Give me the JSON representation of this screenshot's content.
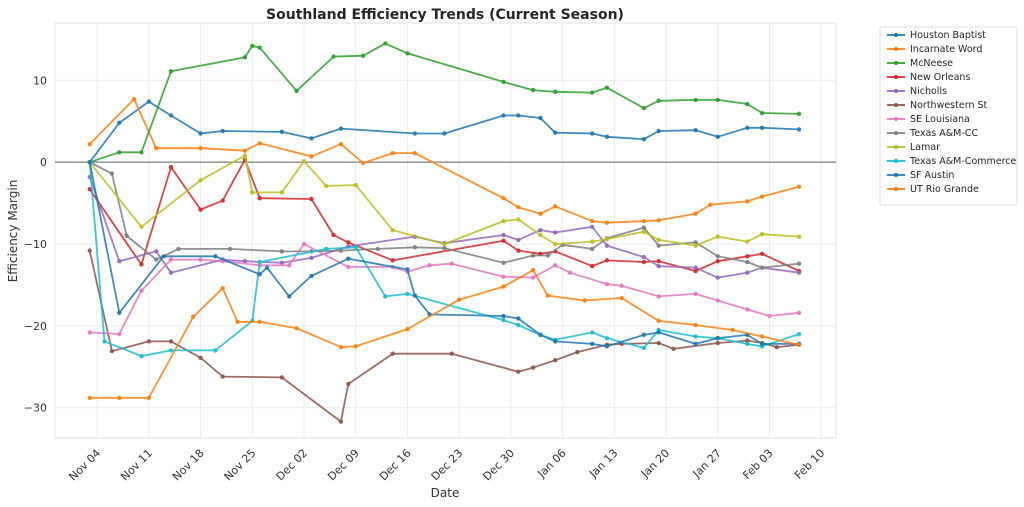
{
  "chart_data": {
    "type": "line",
    "title": "Southland Efficiency Trends (Current Season)",
    "xlabel": "Date",
    "ylabel": "Efficiency Margin",
    "ylim": [
      -33.7,
      17.0
    ],
    "xlim_days_from_nov04": [
      -5.7,
      100.0
    ],
    "yticks": [
      -30,
      -20,
      -10,
      0,
      10
    ],
    "ytick_labels": [
      "−30",
      "−20",
      "−10",
      "0",
      "10"
    ],
    "xticks": [
      0,
      7,
      14,
      21,
      28,
      35,
      42,
      49,
      56,
      63,
      70,
      77,
      84,
      91,
      98
    ],
    "xtick_labels": [
      "Nov 04",
      "Nov 11",
      "Nov 18",
      "Nov 25",
      "Dec 02",
      "Dec 09",
      "Dec 16",
      "Dec 23",
      "Dec 30",
      "Jan 06",
      "Jan 13",
      "Jan 20",
      "Jan 27",
      "Feb 03",
      "Feb 10"
    ],
    "reference_line": 0,
    "grid": true,
    "legend_position": "outside-top-right",
    "series": [
      {
        "name": "Houston Baptist",
        "color": "#1f77b4",
        "x": [
          -1,
          3,
          7,
          10,
          14,
          17,
          25,
          29,
          33,
          43,
          47,
          55,
          57,
          60,
          62,
          67,
          69,
          74,
          76,
          81,
          84,
          88,
          90,
          95
        ],
        "y": [
          0,
          4.8,
          7.4,
          5.7,
          3.5,
          3.8,
          3.7,
          2.9,
          4.1,
          3.5,
          3.5,
          5.7,
          5.7,
          5.4,
          3.6,
          3.5,
          3.1,
          2.8,
          3.8,
          3.9,
          3.1,
          4.2,
          4.2,
          4.0
        ]
      },
      {
        "name": "Incarnate Word",
        "color": "#ff7f0e",
        "x": [
          -1,
          5,
          8,
          14,
          20,
          22,
          29,
          33,
          36,
          40,
          43,
          55,
          57,
          60,
          62,
          67,
          69,
          74,
          76,
          81,
          83,
          88,
          90,
          95
        ],
        "y": [
          2.2,
          7.7,
          1.7,
          1.7,
          1.4,
          2.3,
          0.7,
          2.2,
          -0.1,
          1.1,
          1.1,
          -4.4,
          -5.5,
          -6.3,
          -5.4,
          -7.2,
          -7.4,
          -7.2,
          -7.1,
          -6.3,
          -5.2,
          -4.8,
          -4.2,
          -3.0
        ]
      },
      {
        "name": "McNeese",
        "color": "#2ca02c",
        "x": [
          -1,
          3,
          6,
          10,
          20,
          21,
          22,
          27,
          32,
          36,
          39,
          42,
          55,
          59,
          62,
          67,
          69,
          74,
          76,
          81,
          84,
          88,
          90,
          95
        ],
        "y": [
          0,
          1.2,
          1.2,
          11.1,
          12.8,
          14.2,
          14.0,
          8.7,
          12.9,
          13.0,
          14.5,
          13.3,
          9.8,
          8.8,
          8.6,
          8.5,
          9.1,
          6.6,
          7.5,
          7.6,
          7.6,
          7.1,
          6.0,
          5.9
        ]
      },
      {
        "name": "New Orleans",
        "color": "#d62728",
        "x": [
          -1,
          6,
          10,
          14,
          17,
          20,
          22,
          29,
          32,
          34,
          40,
          55,
          57,
          60,
          62,
          67,
          69,
          74,
          76,
          81,
          84,
          88,
          90,
          95
        ],
        "y": [
          -3.3,
          -12.5,
          -0.6,
          -5.8,
          -4.7,
          0.3,
          -4.4,
          -4.5,
          -8.9,
          -9.8,
          -12.0,
          -9.6,
          -10.8,
          -11.2,
          -10.9,
          -12.7,
          -12.0,
          -12.2,
          -12.1,
          -13.3,
          -12.1,
          -11.5,
          -11.2,
          -13.3
        ]
      },
      {
        "name": "Nicholls",
        "color": "#9467bd",
        "x": [
          -1,
          3,
          8,
          10,
          17,
          20,
          25,
          29,
          34,
          43,
          47,
          55,
          57,
          60,
          62,
          67,
          69,
          74,
          76,
          81,
          84,
          88,
          90,
          95
        ],
        "y": [
          -1.8,
          -12.1,
          -10.9,
          -13.5,
          -11.9,
          -12.1,
          -12.3,
          -11.7,
          -10.3,
          -9.1,
          -9.9,
          -8.9,
          -9.5,
          -8.3,
          -8.6,
          -7.9,
          -10.2,
          -11.6,
          -12.7,
          -12.9,
          -14.1,
          -13.5,
          -12.9,
          -13.5
        ]
      },
      {
        "name": "Northwestern St",
        "color": "#8c564b",
        "x": [
          -1,
          2,
          7,
          10,
          14,
          17,
          25,
          33,
          34,
          40,
          48,
          57,
          59,
          62,
          65,
          69,
          71,
          76,
          78,
          84,
          88,
          90,
          92,
          95
        ],
        "y": [
          -10.8,
          -23.1,
          -21.9,
          -21.9,
          -23.9,
          -26.2,
          -26.3,
          -31.7,
          -27.1,
          -23.4,
          -23.4,
          -25.6,
          -25.1,
          -24.2,
          -23.2,
          -22.3,
          -22.2,
          -22.1,
          -22.8,
          -22.1,
          -21.8,
          -22.1,
          -22.6,
          -22.3
        ]
      },
      {
        "name": "SE Louisiana",
        "color": "#e377c2",
        "x": [
          -1,
          3,
          6,
          10,
          14,
          17,
          22,
          26,
          28,
          34,
          40,
          42,
          45,
          48,
          55,
          59,
          62,
          64,
          69,
          71,
          76,
          81,
          84,
          88,
          91,
          95
        ],
        "y": [
          -20.8,
          -21.0,
          -15.7,
          -11.9,
          -11.9,
          -12.1,
          -12.6,
          -12.6,
          -10.0,
          -12.8,
          -12.8,
          -13.4,
          -12.6,
          -12.4,
          -14.0,
          -14.1,
          -12.6,
          -13.5,
          -14.9,
          -15.1,
          -16.4,
          -16.1,
          -16.9,
          -18.0,
          -18.8,
          -18.4
        ]
      },
      {
        "name": "Texas A&M-CC",
        "color": "#7f7f7f",
        "x": [
          -1,
          2,
          4,
          8,
          11,
          18,
          25,
          29,
          33,
          38,
          43,
          47,
          55,
          59,
          61,
          63,
          67,
          69,
          74,
          76,
          81,
          84,
          88,
          90,
          95
        ],
        "y": [
          0,
          -1.4,
          -9.0,
          -11.9,
          -10.6,
          -10.6,
          -10.9,
          -10.9,
          -10.8,
          -10.6,
          -10.4,
          -10.5,
          -12.3,
          -11.4,
          -11.4,
          -10.1,
          -10.6,
          -9.3,
          -8.0,
          -10.2,
          -9.8,
          -11.5,
          -12.2,
          -12.9,
          -12.4
        ]
      },
      {
        "name": "Lamar",
        "color": "#bcbd22",
        "x": [
          -1,
          6,
          14,
          20,
          21,
          25,
          28,
          31,
          35,
          40,
          47,
          55,
          57,
          60,
          62,
          67,
          69,
          74,
          76,
          81,
          84,
          88,
          90,
          95
        ],
        "y": [
          0,
          -7.9,
          -2.2,
          0.8,
          -3.7,
          -3.7,
          0.1,
          -2.9,
          -2.8,
          -8.3,
          -10.0,
          -7.2,
          -7.0,
          -8.9,
          -10.0,
          -9.7,
          -9.4,
          -8.5,
          -9.5,
          -10.2,
          -9.1,
          -9.7,
          -8.8,
          -9.1
        ]
      },
      {
        "name": "Texas A&M-Commerce",
        "color": "#17becf",
        "x": [
          -1,
          1,
          6,
          10,
          16,
          21,
          22,
          31,
          35,
          39,
          42,
          55,
          57,
          60,
          62,
          67,
          69,
          74,
          76,
          81,
          84,
          88,
          90,
          95
        ],
        "y": [
          0,
          -21.9,
          -23.7,
          -23.0,
          -23.0,
          -19.4,
          -12.2,
          -10.6,
          -10.4,
          -16.4,
          -16.1,
          -19.3,
          -19.9,
          -21.1,
          -21.7,
          -20.8,
          -21.5,
          -22.7,
          -20.5,
          -21.3,
          -21.5,
          -22.2,
          -22.5,
          -21.0
        ]
      },
      {
        "name": "SF Austin",
        "color": "#1f77b4",
        "x": [
          -1,
          3,
          9,
          16,
          22,
          23,
          26,
          29,
          34,
          42,
          43,
          45,
          55,
          57,
          60,
          62,
          67,
          69,
          74,
          76,
          81,
          84,
          88,
          90,
          95
        ],
        "y": [
          0,
          -18.4,
          -11.5,
          -11.5,
          -13.7,
          -12.9,
          -16.4,
          -13.9,
          -11.8,
          -13.1,
          -16.3,
          -18.6,
          -18.8,
          -19.1,
          -21.1,
          -21.9,
          -22.2,
          -22.5,
          -21.1,
          -20.8,
          -22.2,
          -21.5,
          -21.1,
          -22.2,
          -22.2
        ]
      },
      {
        "name": "UT Rio Grande",
        "color": "#ff7f0e",
        "x": [
          -1,
          3,
          7,
          13,
          17,
          19,
          22,
          27,
          33,
          35,
          42,
          49,
          55,
          59,
          61,
          66,
          71,
          76,
          81,
          86,
          90,
          95
        ],
        "y": [
          -28.8,
          -28.8,
          -28.8,
          -18.9,
          -15.4,
          -19.5,
          -19.5,
          -20.3,
          -22.6,
          -22.5,
          -20.4,
          -16.8,
          -15.2,
          -13.2,
          -16.3,
          -16.9,
          -16.6,
          -19.4,
          -19.9,
          -20.5,
          -21.3,
          -22.3
        ]
      }
    ]
  }
}
